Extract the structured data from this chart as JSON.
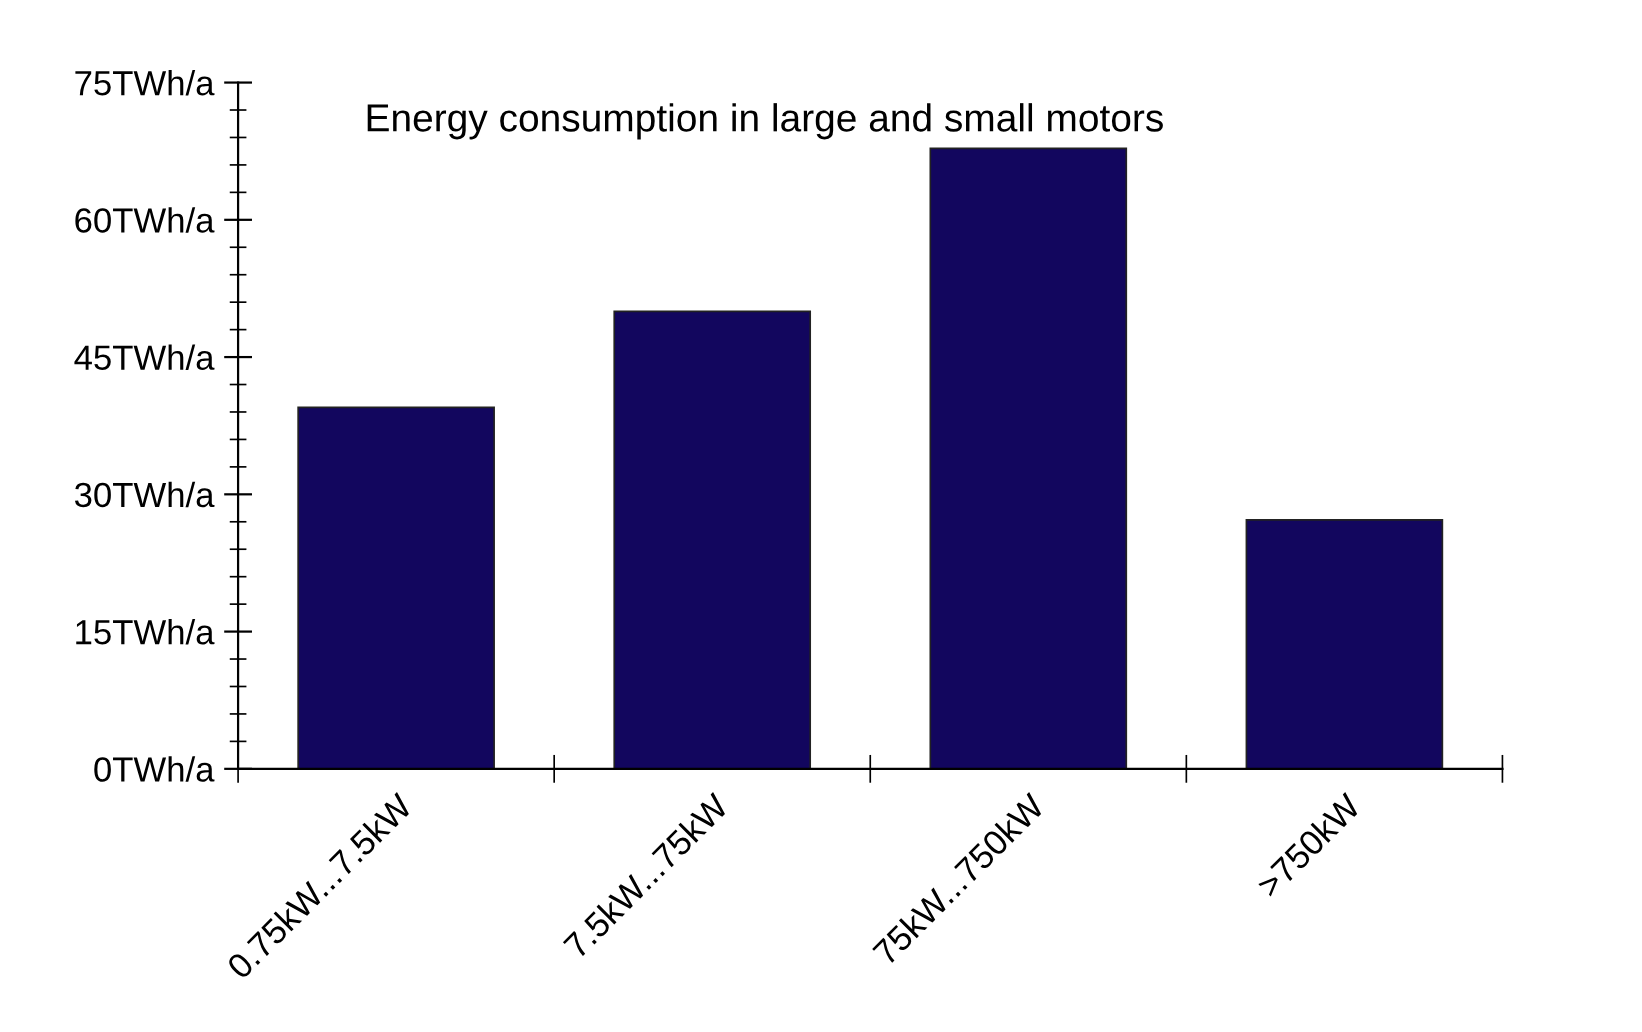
{
  "chart_data": {
    "type": "bar",
    "title": "Energy consumption in large and small motors",
    "categories": [
      "0.75kW...7.5kW",
      "7.5kW...75kW",
      "75kW...750kW",
      ">750kW"
    ],
    "values": [
      39.5,
      50,
      67.8,
      27.2
    ],
    "color": "#12065e",
    "ylim": [
      0,
      75
    ],
    "yticks": [
      {
        "value": 0,
        "label": "0TWh/a"
      },
      {
        "value": 3,
        "label": null
      },
      {
        "value": 6,
        "label": null
      },
      {
        "value": 9,
        "label": null
      },
      {
        "value": 12,
        "label": null
      },
      {
        "value": 15,
        "label": "15TWh/a"
      },
      {
        "value": 18,
        "label": null
      },
      {
        "value": 21,
        "label": null
      },
      {
        "value": 24,
        "label": null
      },
      {
        "value": 27,
        "label": null
      },
      {
        "value": 30,
        "label": "30TWh/a"
      },
      {
        "value": 33,
        "label": null
      },
      {
        "value": 36,
        "label": null
      },
      {
        "value": 39,
        "label": null
      },
      {
        "value": 42,
        "label": null
      },
      {
        "value": 45,
        "label": "45TWh/a"
      },
      {
        "value": 48,
        "label": null
      },
      {
        "value": 51,
        "label": null
      },
      {
        "value": 54,
        "label": null
      },
      {
        "value": 57,
        "label": null
      },
      {
        "value": 60,
        "label": "60TWh/a"
      },
      {
        "value": 63,
        "label": null
      },
      {
        "value": 66,
        "label": null
      },
      {
        "value": 69,
        "label": null
      },
      {
        "value": 72,
        "label": null
      },
      {
        "value": 75,
        "label": "75TWh/a"
      }
    ],
    "grid": false
  }
}
